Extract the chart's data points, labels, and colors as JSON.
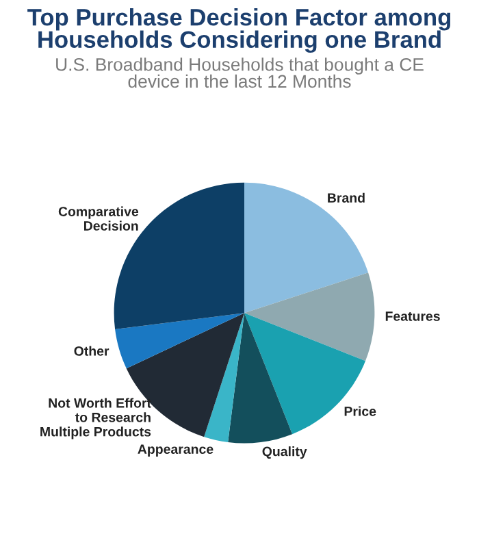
{
  "chart_data": {
    "type": "pie",
    "title": "Top Purchase Decision Factor among\nHouseholds Considering one Brand",
    "subtitle": "U.S. Broadband Households that bought a CE\ndevice in the last 12 Months",
    "categories": [
      "Brand",
      "Features",
      "Price",
      "Quality",
      "Appearance",
      "Not Worth Effort\nto Research\nMultiple Products",
      "Other",
      "Comparative\nDecision"
    ],
    "values": [
      20,
      11,
      13,
      8,
      3,
      13,
      5,
      27
    ],
    "colors": [
      "#8bbde0",
      "#8fa9b0",
      "#1aa1b0",
      "#134f5c",
      "#3ab5c8",
      "#212a35",
      "#1a78c2",
      "#0d3f66"
    ]
  }
}
